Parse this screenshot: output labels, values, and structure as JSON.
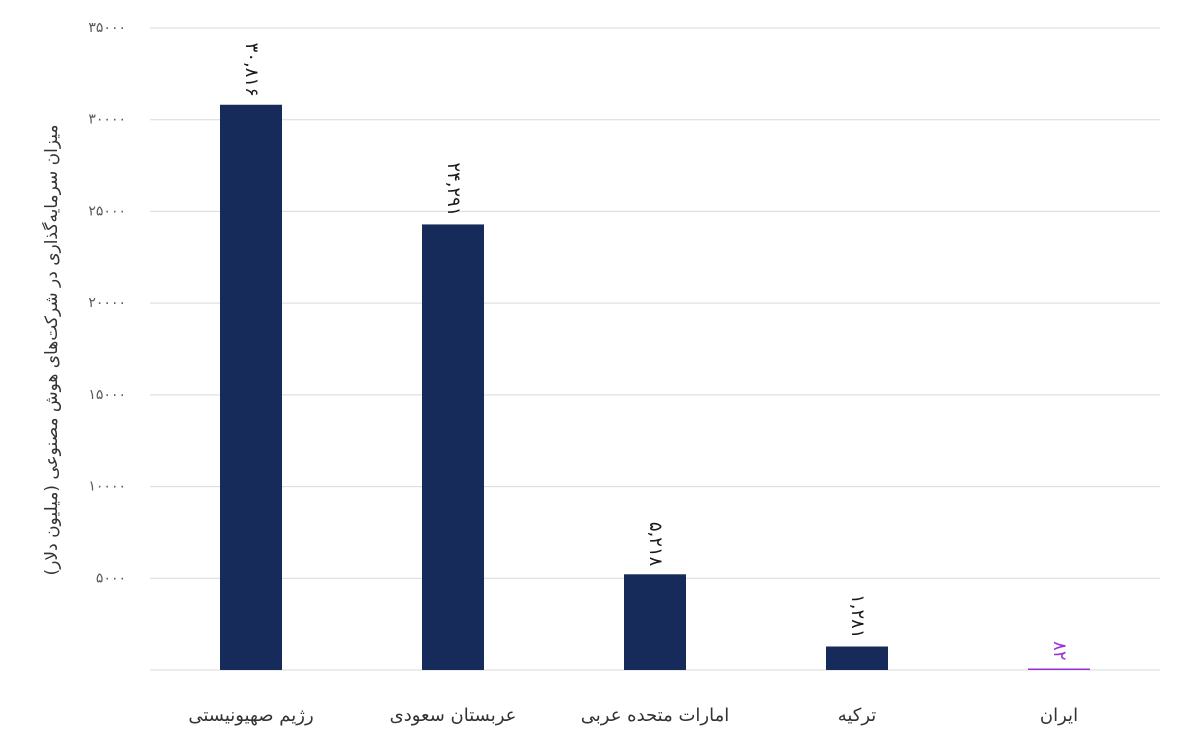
{
  "chart_data": {
    "type": "bar",
    "y_axis_label": "میزان سرمایه‌گذاری در شرکت‌های هوش مصنوعی (میلیون دلار)",
    "categories": [
      "رژیم صهیونیستی",
      "عربستان سعودی",
      "امارات متحده عربی",
      "ترکیه",
      "ایران"
    ],
    "values": [
      30816,
      24291,
      5218,
      1281,
      82
    ],
    "value_labels": [
      "۳۰,۸۱۶",
      "۲۴,۲۹۱",
      "۵,۲۱۸",
      "۱,۲۸۱",
      "۸۲"
    ],
    "colors": [
      "#172b5a",
      "#172b5a",
      "#172b5a",
      "#172b5a",
      "#9b30d9"
    ],
    "ylim": [
      0,
      35000
    ],
    "yticks": [
      {
        "value": 5000,
        "label": "۵۰۰۰"
      },
      {
        "value": 10000,
        "label": "۱۰۰۰۰"
      },
      {
        "value": 15000,
        "label": "۱۵۰۰۰"
      },
      {
        "value": 20000,
        "label": "۲۰۰۰۰"
      },
      {
        "value": 25000,
        "label": "۲۵۰۰۰"
      },
      {
        "value": 30000,
        "label": "۳۰۰۰۰"
      },
      {
        "value": 35000,
        "label": "۳۵۰۰۰"
      }
    ],
    "grid": true
  }
}
